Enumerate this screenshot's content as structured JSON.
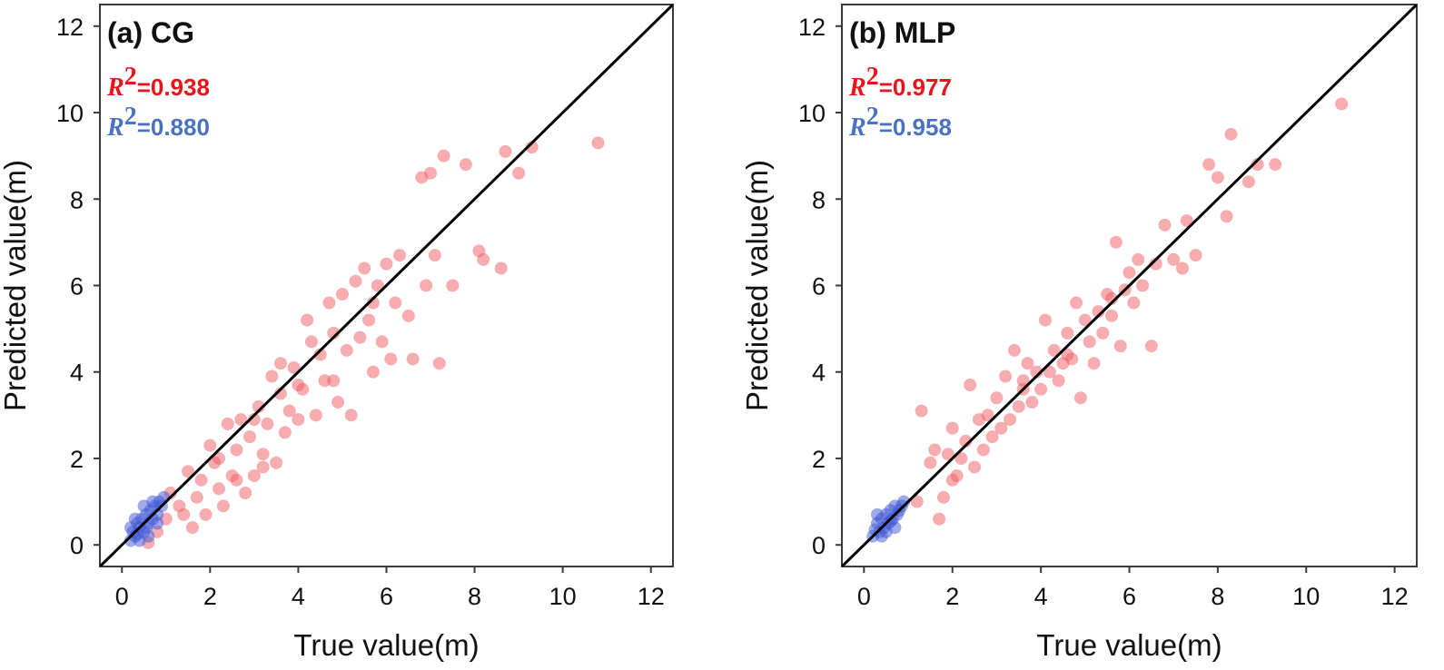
{
  "chart_data": [
    {
      "type": "scatter",
      "title": "(a) CG",
      "xlabel": "True value(m)",
      "ylabel": "Predicted value(m)",
      "xlim": [
        -0.5,
        12.5
      ],
      "ylim": [
        -0.5,
        12.5
      ],
      "xticks": [
        "0",
        "2",
        "4",
        "6",
        "8",
        "10",
        "12"
      ],
      "yticks": [
        "0",
        "2",
        "4",
        "6",
        "8",
        "10",
        "12"
      ],
      "reference_line": "y = x",
      "annotations": [
        {
          "label": "R",
          "superscript": "2",
          "value": "=0.938",
          "color": "#e8141c"
        },
        {
          "label": "R",
          "superscript": "2",
          "value": "=0.880",
          "color": "#4a72c4"
        }
      ],
      "series": [
        {
          "name": "red",
          "color": "#f05a5f",
          "points": [
            [
              0.6,
              0.05
            ],
            [
              0.8,
              0.3
            ],
            [
              1.0,
              0.6
            ],
            [
              1.1,
              1.2
            ],
            [
              1.3,
              0.9
            ],
            [
              1.5,
              1.7
            ],
            [
              1.6,
              0.4
            ],
            [
              1.7,
              1.1
            ],
            [
              1.8,
              1.5
            ],
            [
              1.9,
              0.7
            ],
            [
              2.0,
              2.3
            ],
            [
              2.1,
              1.9
            ],
            [
              2.2,
              1.3
            ],
            [
              2.3,
              0.9
            ],
            [
              2.4,
              2.8
            ],
            [
              2.5,
              1.6
            ],
            [
              2.6,
              2.2
            ],
            [
              2.7,
              2.9
            ],
            [
              2.8,
              1.2
            ],
            [
              2.9,
              2.5
            ],
            [
              3.0,
              1.6
            ],
            [
              3.1,
              3.2
            ],
            [
              3.2,
              2.1
            ],
            [
              3.3,
              2.8
            ],
            [
              3.4,
              3.9
            ],
            [
              3.5,
              1.9
            ],
            [
              3.6,
              3.5
            ],
            [
              3.7,
              2.6
            ],
            [
              3.8,
              3.1
            ],
            [
              3.9,
              4.1
            ],
            [
              4.0,
              2.9
            ],
            [
              4.1,
              3.6
            ],
            [
              4.2,
              5.2
            ],
            [
              4.3,
              4.7
            ],
            [
              4.4,
              3.0
            ],
            [
              4.5,
              4.4
            ],
            [
              4.6,
              3.8
            ],
            [
              4.7,
              5.6
            ],
            [
              4.8,
              4.9
            ],
            [
              4.9,
              3.3
            ],
            [
              5.0,
              5.8
            ],
            [
              5.1,
              4.5
            ],
            [
              5.2,
              3.0
            ],
            [
              5.3,
              6.1
            ],
            [
              5.4,
              4.8
            ],
            [
              5.5,
              6.4
            ],
            [
              5.6,
              5.2
            ],
            [
              5.7,
              4.0
            ],
            [
              5.8,
              6.0
            ],
            [
              5.9,
              4.7
            ],
            [
              6.0,
              6.5
            ],
            [
              6.1,
              4.3
            ],
            [
              6.2,
              5.6
            ],
            [
              6.3,
              6.7
            ],
            [
              6.5,
              5.3
            ],
            [
              6.6,
              4.3
            ],
            [
              6.8,
              8.5
            ],
            [
              6.9,
              6.0
            ],
            [
              7.0,
              8.6
            ],
            [
              7.1,
              6.7
            ],
            [
              7.2,
              4.2
            ],
            [
              7.3,
              9.0
            ],
            [
              7.5,
              6.0
            ],
            [
              7.8,
              8.8
            ],
            [
              8.1,
              6.8
            ],
            [
              8.2,
              6.6
            ],
            [
              8.6,
              6.4
            ],
            [
              8.7,
              9.1
            ],
            [
              9.0,
              8.6
            ],
            [
              9.3,
              9.2
            ],
            [
              10.8,
              9.3
            ],
            [
              3.2,
              1.8
            ],
            [
              2.6,
              1.5
            ],
            [
              1.4,
              0.7
            ],
            [
              4.8,
              3.8
            ],
            [
              3.6,
              4.2
            ],
            [
              5.7,
              5.6
            ],
            [
              2.2,
              2.0
            ],
            [
              3.0,
              2.9
            ],
            [
              4.0,
              3.7
            ]
          ]
        },
        {
          "name": "blue",
          "color": "#3f55d6",
          "points": [
            [
              0.2,
              0.1
            ],
            [
              0.25,
              0.3
            ],
            [
              0.3,
              0.2
            ],
            [
              0.35,
              0.5
            ],
            [
              0.4,
              0.4
            ],
            [
              0.45,
              0.6
            ],
            [
              0.5,
              0.3
            ],
            [
              0.55,
              0.7
            ],
            [
              0.6,
              0.5
            ],
            [
              0.65,
              0.8
            ],
            [
              0.7,
              0.6
            ],
            [
              0.75,
              0.9
            ],
            [
              0.8,
              0.7
            ],
            [
              0.85,
              1.0
            ],
            [
              0.9,
              0.9
            ],
            [
              0.95,
              1.1
            ],
            [
              0.3,
              0.6
            ],
            [
              0.5,
              0.9
            ],
            [
              0.6,
              0.2
            ],
            [
              0.4,
              0.1
            ],
            [
              0.7,
              1.0
            ],
            [
              0.8,
              0.5
            ],
            [
              0.2,
              0.4
            ],
            [
              0.55,
              0.4
            ],
            [
              0.35,
              0.25
            ]
          ]
        }
      ]
    },
    {
      "type": "scatter",
      "title": "(b) MLP",
      "xlabel": "True value(m)",
      "ylabel": "Predicted value(m)",
      "xlim": [
        -0.5,
        12.5
      ],
      "ylim": [
        -0.5,
        12.5
      ],
      "xticks": [
        "0",
        "2",
        "4",
        "6",
        "8",
        "10",
        "12"
      ],
      "yticks": [
        "0",
        "2",
        "4",
        "6",
        "8",
        "10",
        "12"
      ],
      "reference_line": "y = x",
      "annotations": [
        {
          "label": "R",
          "superscript": "2",
          "value": "=0.977",
          "color": "#e8141c"
        },
        {
          "label": "R",
          "superscript": "2",
          "value": "=0.958",
          "color": "#4a72c4"
        }
      ],
      "series": [
        {
          "name": "red",
          "color": "#f05a5f",
          "points": [
            [
              1.2,
              1.0
            ],
            [
              1.3,
              3.1
            ],
            [
              1.5,
              1.9
            ],
            [
              1.6,
              2.2
            ],
            [
              1.7,
              0.6
            ],
            [
              1.8,
              1.1
            ],
            [
              1.9,
              2.1
            ],
            [
              2.0,
              2.7
            ],
            [
              2.1,
              1.6
            ],
            [
              2.2,
              2.0
            ],
            [
              2.3,
              2.4
            ],
            [
              2.4,
              3.7
            ],
            [
              2.5,
              1.8
            ],
            [
              2.6,
              2.9
            ],
            [
              2.7,
              2.2
            ],
            [
              2.8,
              3.0
            ],
            [
              2.9,
              2.5
            ],
            [
              3.0,
              3.4
            ],
            [
              3.1,
              2.7
            ],
            [
              3.2,
              3.9
            ],
            [
              3.3,
              2.9
            ],
            [
              3.4,
              4.5
            ],
            [
              3.5,
              3.2
            ],
            [
              3.6,
              3.6
            ],
            [
              3.7,
              4.2
            ],
            [
              3.8,
              3.3
            ],
            [
              3.9,
              4.0
            ],
            [
              4.0,
              3.6
            ],
            [
              4.1,
              5.2
            ],
            [
              4.2,
              4.0
            ],
            [
              4.3,
              4.5
            ],
            [
              4.4,
              3.8
            ],
            [
              4.5,
              4.2
            ],
            [
              4.6,
              4.9
            ],
            [
              4.7,
              4.3
            ],
            [
              4.8,
              5.6
            ],
            [
              4.9,
              3.4
            ],
            [
              5.0,
              5.2
            ],
            [
              5.1,
              4.7
            ],
            [
              5.2,
              4.2
            ],
            [
              5.3,
              5.4
            ],
            [
              5.4,
              4.9
            ],
            [
              5.5,
              5.8
            ],
            [
              5.6,
              5.3
            ],
            [
              5.7,
              7.0
            ],
            [
              5.8,
              4.6
            ],
            [
              5.9,
              5.9
            ],
            [
              6.0,
              6.3
            ],
            [
              6.1,
              5.6
            ],
            [
              6.3,
              6.0
            ],
            [
              6.5,
              4.6
            ],
            [
              6.6,
              6.5
            ],
            [
              6.8,
              7.4
            ],
            [
              7.0,
              6.6
            ],
            [
              7.2,
              6.4
            ],
            [
              7.3,
              7.5
            ],
            [
              7.5,
              6.7
            ],
            [
              7.8,
              8.8
            ],
            [
              8.0,
              8.5
            ],
            [
              8.2,
              7.6
            ],
            [
              8.3,
              9.5
            ],
            [
              8.7,
              8.4
            ],
            [
              8.9,
              8.8
            ],
            [
              9.3,
              8.8
            ],
            [
              10.8,
              10.2
            ],
            [
              2.0,
              1.5
            ],
            [
              3.6,
              3.8
            ],
            [
              4.6,
              4.4
            ],
            [
              5.6,
              5.7
            ],
            [
              6.2,
              6.6
            ]
          ]
        },
        {
          "name": "blue",
          "color": "#3f55d6",
          "points": [
            [
              0.2,
              0.2
            ],
            [
              0.25,
              0.35
            ],
            [
              0.3,
              0.5
            ],
            [
              0.35,
              0.3
            ],
            [
              0.4,
              0.6
            ],
            [
              0.45,
              0.4
            ],
            [
              0.5,
              0.7
            ],
            [
              0.55,
              0.5
            ],
            [
              0.6,
              0.8
            ],
            [
              0.65,
              0.6
            ],
            [
              0.7,
              0.9
            ],
            [
              0.75,
              0.7
            ],
            [
              0.8,
              0.8
            ],
            [
              0.85,
              0.9
            ],
            [
              0.9,
              1.0
            ],
            [
              0.3,
              0.7
            ],
            [
              0.5,
              0.3
            ],
            [
              0.6,
              0.55
            ],
            [
              0.4,
              0.2
            ],
            [
              0.7,
              0.4
            ]
          ]
        }
      ]
    }
  ]
}
